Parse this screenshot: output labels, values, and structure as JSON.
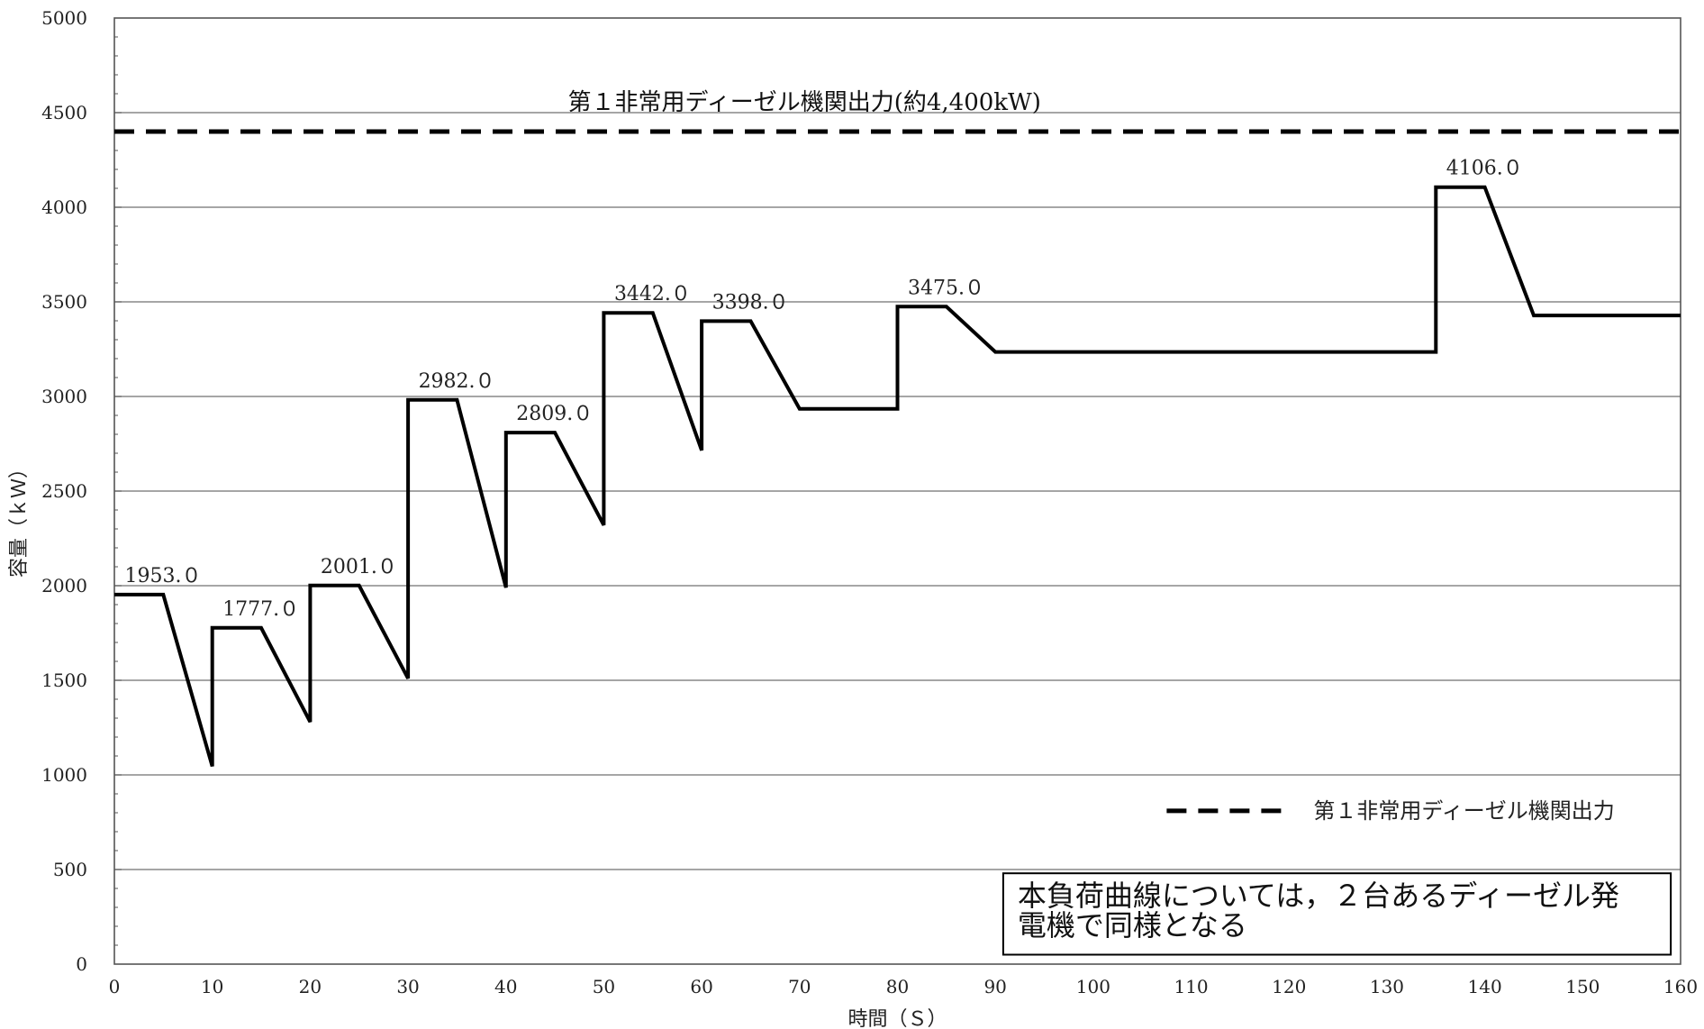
{
  "chart_data": {
    "type": "line",
    "title": "",
    "xlabel": "時間（Ｓ）",
    "ylabel": "容量（ｋＷ）",
    "xlim": [
      0,
      160
    ],
    "ylim": [
      0,
      5000
    ],
    "x_ticks": [
      0,
      10,
      20,
      30,
      40,
      50,
      60,
      70,
      80,
      90,
      100,
      110,
      120,
      130,
      140,
      150,
      160
    ],
    "y_ticks": [
      0,
      500,
      1000,
      1500,
      2000,
      2500,
      3000,
      3500,
      4000,
      4500,
      5000
    ],
    "grid": "horizontal",
    "series": [
      {
        "points": [
          [
            0,
            1953
          ],
          [
            5,
            1953
          ],
          [
            10,
            1045
          ],
          [
            10,
            1777
          ],
          [
            15,
            1777
          ],
          [
            20,
            1280
          ],
          [
            20,
            2001
          ],
          [
            25,
            2001
          ],
          [
            30,
            1510
          ],
          [
            30,
            2982
          ],
          [
            35,
            2982
          ],
          [
            40,
            1990
          ],
          [
            40,
            2809
          ],
          [
            45,
            2809
          ],
          [
            50,
            2320
          ],
          [
            50,
            3442
          ],
          [
            55,
            3442
          ],
          [
            60,
            2715
          ],
          [
            60,
            3398
          ],
          [
            65,
            3398
          ],
          [
            70,
            2935
          ],
          [
            80,
            2935
          ],
          [
            80,
            3475
          ],
          [
            85,
            3475
          ],
          [
            90,
            3235
          ],
          [
            135,
            3235
          ],
          [
            135,
            4106
          ],
          [
            140,
            4106
          ],
          [
            145,
            3428
          ],
          [
            160,
            3428
          ]
        ]
      }
    ],
    "reference_line": {
      "y": 4400,
      "label": "第１非常用ディーゼル機関出力(約4,400kW)",
      "style": "dashed"
    },
    "data_labels": [
      {
        "x": 0,
        "y": 1953,
        "text": "1953.０"
      },
      {
        "x": 10,
        "y": 1777,
        "text": "1777.０"
      },
      {
        "x": 20,
        "y": 2001,
        "text": "2001.０"
      },
      {
        "x": 30,
        "y": 2982,
        "text": "2982.０"
      },
      {
        "x": 40,
        "y": 2809,
        "text": "2809.０"
      },
      {
        "x": 50,
        "y": 3442,
        "text": "3442.０"
      },
      {
        "x": 60,
        "y": 3398,
        "text": "3398.０"
      },
      {
        "x": 80,
        "y": 3475,
        "text": "3475.０"
      },
      {
        "x": 135,
        "y": 4106,
        "text": "4106.０"
      }
    ],
    "legend": {
      "position": "bottom-right",
      "entries": [
        {
          "style": "dashed",
          "text": "第１非常用ディーゼル機関出力"
        }
      ]
    },
    "note": {
      "position": "bottom-right",
      "lines": [
        "本負荷曲線については，２台あるディーゼル発",
        "電機で同様となる"
      ]
    },
    "colors": {
      "line": "#000000",
      "grid": "#888888",
      "axis": "#555555"
    }
  }
}
